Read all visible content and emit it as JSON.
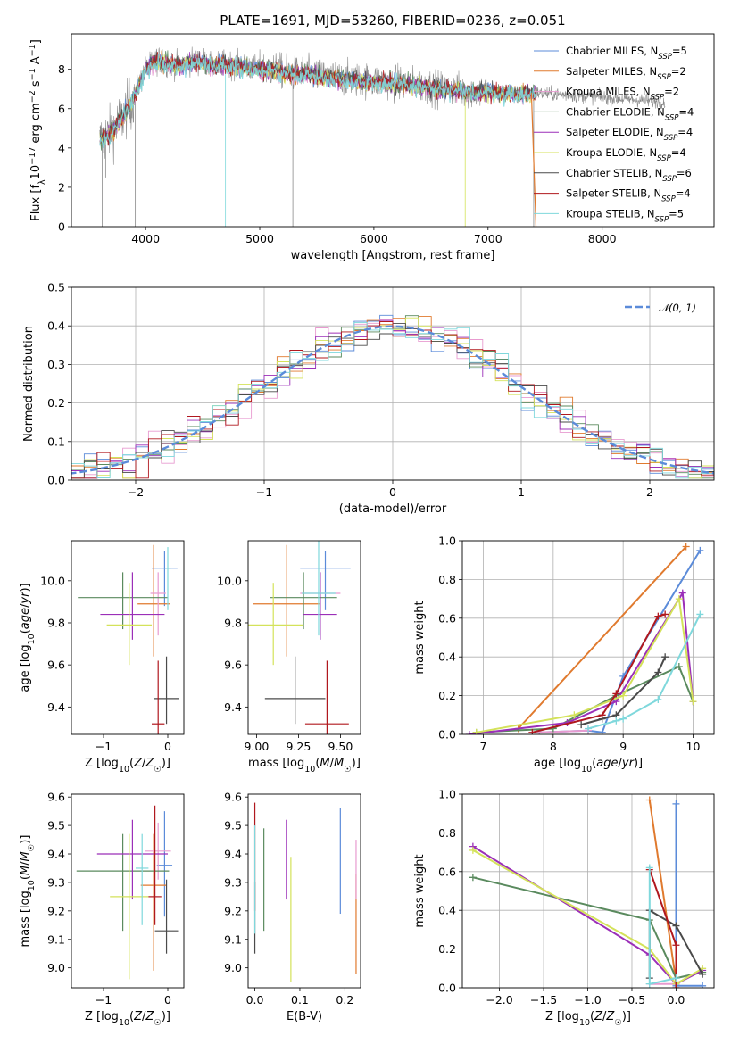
{
  "page": {
    "title": "PLATE=1691, MJD=53260, FIBERID=0236, z=0.051"
  },
  "models": [
    {
      "name": "Chabrier MILES",
      "nssp": "5",
      "color": "#5b8bd9"
    },
    {
      "name": "Salpeter MILES",
      "nssp": "2",
      "color": "#e07a2e"
    },
    {
      "name": "Kroupa MILES",
      "nssp": "2",
      "color": "#e89bd0"
    },
    {
      "name": "Chabrier ELODIE",
      "nssp": "4",
      "color": "#5a8a5e"
    },
    {
      "name": "Salpeter ELODIE",
      "nssp": "4",
      "color": "#9b2fb8"
    },
    {
      "name": "Kroupa ELODIE",
      "nssp": "4",
      "color": "#d4e25a"
    },
    {
      "name": "Chabrier STELIB",
      "nssp": "6",
      "color": "#4a4a4a"
    },
    {
      "name": "Salpeter STELIB",
      "nssp": "4",
      "color": "#b0181e"
    },
    {
      "name": "Kroupa STELIB",
      "nssp": "5",
      "color": "#7fd8dc"
    }
  ],
  "chart_data": [
    {
      "id": "spectrum",
      "type": "line",
      "title": "PLATE=1691, MJD=53260, FIBERID=0236, z=0.051",
      "xlabel": "wavelength [Angstrom, rest frame]",
      "ylabel": "Flux [f_λ 10^-17 erg cm^-2 s^-1 A^-1]",
      "xlim": [
        3350,
        8980
      ],
      "ylim": [
        0,
        9.8
      ],
      "xticks": [
        4000,
        5000,
        6000,
        7000,
        8000
      ],
      "yticks": [
        0,
        2,
        4,
        6,
        8
      ],
      "continuum": [
        [
          3600,
          4.4
        ],
        [
          3700,
          4.8
        ],
        [
          3800,
          5.6
        ],
        [
          3900,
          6.6
        ],
        [
          3950,
          7.3
        ],
        [
          4000,
          8.0
        ],
        [
          4100,
          8.5
        ],
        [
          4200,
          8.3
        ],
        [
          4300,
          8.2
        ],
        [
          4400,
          8.4
        ],
        [
          4500,
          8.4
        ],
        [
          4600,
          8.2
        ],
        [
          4700,
          8.3
        ],
        [
          4800,
          8.2
        ],
        [
          4900,
          8.1
        ],
        [
          5000,
          8.0
        ],
        [
          5100,
          8.0
        ],
        [
          5200,
          7.9
        ],
        [
          5300,
          7.8
        ],
        [
          5400,
          7.8
        ],
        [
          5500,
          7.7
        ],
        [
          5600,
          7.6
        ],
        [
          5800,
          7.5
        ],
        [
          6000,
          7.4
        ],
        [
          6200,
          7.3
        ],
        [
          6400,
          7.2
        ],
        [
          6600,
          7.0
        ],
        [
          6800,
          6.9
        ],
        [
          7000,
          6.9
        ],
        [
          7200,
          6.8
        ],
        [
          7400,
          6.8
        ]
      ],
      "model_end": 7420,
      "data_end": 8550,
      "grid": false,
      "legend": "top-right"
    },
    {
      "id": "residuals",
      "type": "histogram",
      "xlabel": "(data-model)/error",
      "ylabel": "Normed distribution",
      "xlim": [
        -2.5,
        2.5
      ],
      "ylim": [
        0,
        0.5
      ],
      "xticks": [
        -2,
        -1,
        0,
        1,
        2
      ],
      "yticks": [
        0.0,
        0.1,
        0.2,
        0.3,
        0.4,
        0.5
      ],
      "bin_width": 0.1,
      "reference_label": "𝒩(0, 1)",
      "reference_color": "#5b8bd9",
      "grid": true,
      "legend": "top-right"
    },
    {
      "id": "age_vs_Z",
      "type": "errorbar",
      "xlabel": "Z [log10(Z/Z☉)]",
      "ylabel": "age  [log10(age/yr)]",
      "xlim": [
        -1.5,
        0.25
      ],
      "ylim": [
        9.27,
        10.19
      ],
      "xticks": [
        -1,
        0
      ],
      "yticks": [
        9.4,
        9.6,
        9.8,
        10.0
      ],
      "points": [
        {
          "x": -0.05,
          "y": 10.06,
          "xerr": 0.2,
          "yerr": [
            0.18,
            0.08
          ]
        },
        {
          "x": -0.22,
          "y": 9.89,
          "xerr": 0.25,
          "yerr": [
            0.25,
            0.28
          ]
        },
        {
          "x": -0.15,
          "y": 9.94,
          "xerr": 0.12,
          "yerr": [
            0.2,
            0.1
          ]
        },
        {
          "x": -0.7,
          "y": 9.92,
          "xerr": 0.7,
          "yerr": [
            0.15,
            0.12
          ]
        },
        {
          "x": -0.55,
          "y": 9.84,
          "xerr": 0.5,
          "yerr": [
            0.12,
            0.2
          ]
        },
        {
          "x": -0.6,
          "y": 9.79,
          "xerr": 0.35,
          "yerr": [
            0.19,
            0.2
          ]
        },
        {
          "x": -0.02,
          "y": 9.44,
          "xerr": 0.2,
          "yerr": [
            0.12,
            0.2
          ]
        },
        {
          "x": -0.15,
          "y": 9.32,
          "xerr": 0.1,
          "yerr": [
            0.05,
            0.3
          ]
        },
        {
          "x": 0.0,
          "y": 10.06,
          "xerr": 0.05,
          "yerr": [
            0.2,
            0.1
          ]
        }
      ]
    },
    {
      "id": "age_vs_mass",
      "type": "errorbar",
      "xlabel": "mass [log10(M/M☉)]",
      "ylabel": "",
      "xlim": [
        8.95,
        9.62
      ],
      "ylim": [
        9.27,
        10.19
      ],
      "xticks": [
        9.0,
        9.25,
        9.5
      ],
      "yticks": [
        9.4,
        9.6,
        9.8,
        10.0
      ],
      "points": [
        {
          "x": 9.41,
          "y": 10.06,
          "xerr": 0.15,
          "yerr": [
            0.2,
            0.08
          ]
        },
        {
          "x": 9.18,
          "y": 9.89,
          "xerr": 0.2,
          "yerr": [
            0.25,
            0.28
          ]
        },
        {
          "x": 9.38,
          "y": 9.94,
          "xerr": 0.12,
          "yerr": [
            0.2,
            0.1
          ]
        },
        {
          "x": 9.28,
          "y": 9.92,
          "xerr": 0.2,
          "yerr": [
            0.15,
            0.12
          ]
        },
        {
          "x": 9.38,
          "y": 9.84,
          "xerr": 0.1,
          "yerr": [
            0.12,
            0.2
          ]
        },
        {
          "x": 9.1,
          "y": 9.79,
          "xerr": 0.18,
          "yerr": [
            0.19,
            0.2
          ]
        },
        {
          "x": 9.23,
          "y": 9.44,
          "xerr": 0.18,
          "yerr": [
            0.12,
            0.2
          ]
        },
        {
          "x": 9.42,
          "y": 9.32,
          "xerr": 0.13,
          "yerr": [
            0.05,
            0.3
          ]
        },
        {
          "x": 9.37,
          "y": 9.94,
          "xerr": 0.1,
          "yerr": [
            0.2,
            0.25
          ]
        }
      ]
    },
    {
      "id": "weight_vs_age",
      "type": "line",
      "xlabel": "age  [log10(age/yr)]",
      "ylabel": "mass weight",
      "xlim": [
        6.7,
        10.3
      ],
      "ylim": [
        0,
        1
      ],
      "xticks": [
        7,
        8,
        9,
        10
      ],
      "yticks": [
        0.0,
        0.2,
        0.4,
        0.6,
        0.8,
        1.0
      ],
      "grid": true,
      "series": [
        {
          "color_index": 0,
          "x": [
            7.8,
            8.5,
            8.7,
            9.0,
            10.1
          ],
          "y": [
            0.01,
            0.02,
            0.01,
            0.3,
            0.95
          ]
        },
        {
          "color_index": 1,
          "x": [
            7.5,
            9.9
          ],
          "y": [
            0.03,
            0.97
          ]
        },
        {
          "color_index": 2,
          "x": [
            7.8,
            8.5
          ],
          "y": [
            0.01,
            0.02
          ]
        },
        {
          "color_index": 3,
          "x": [
            6.9,
            8.0,
            8.9,
            9.8,
            10.0
          ],
          "y": [
            0.01,
            0.03,
            0.2,
            0.35,
            0.17
          ]
        },
        {
          "color_index": 4,
          "x": [
            6.8,
            8.2,
            8.9,
            9.85,
            10.0
          ],
          "y": [
            0.0,
            0.06,
            0.17,
            0.73,
            0.17
          ]
        },
        {
          "color_index": 5,
          "x": [
            6.9,
            8.3,
            9.0,
            9.8,
            10.0
          ],
          "y": [
            0.01,
            0.1,
            0.2,
            0.7,
            0.17
          ]
        },
        {
          "color_index": 6,
          "x": [
            8.4,
            8.7,
            8.9,
            9.5,
            9.6
          ],
          "y": [
            0.05,
            0.08,
            0.1,
            0.32,
            0.4
          ]
        },
        {
          "color_index": 7,
          "x": [
            7.7,
            8.7,
            8.9,
            9.5,
            9.6
          ],
          "y": [
            0.01,
            0.1,
            0.21,
            0.61,
            0.62
          ]
        },
        {
          "color_index": 8,
          "x": [
            8.5,
            8.9,
            9.0,
            9.5,
            10.1
          ],
          "y": [
            0.03,
            0.07,
            0.08,
            0.18,
            0.62
          ]
        }
      ]
    },
    {
      "id": "mass_vs_Z",
      "type": "errorbar",
      "xlabel": "Z [log10(Z/Z☉)]",
      "ylabel": "mass [log10(M/M☉)]",
      "xlim": [
        -1.5,
        0.25
      ],
      "ylim": [
        8.93,
        9.61
      ],
      "xticks": [
        -1,
        0
      ],
      "yticks": [
        9.0,
        9.1,
        9.2,
        9.3,
        9.4,
        9.5,
        9.6
      ],
      "points": [
        {
          "x": -0.05,
          "y": 9.36,
          "xerr": 0.12,
          "yerr": [
            0.18,
            0.19
          ]
        },
        {
          "x": -0.22,
          "y": 9.29,
          "xerr": 0.2,
          "yerr": [
            0.3,
            0.18
          ]
        },
        {
          "x": -0.15,
          "y": 9.41,
          "xerr": 0.2,
          "yerr": [
            0.1,
            0.1
          ]
        },
        {
          "x": -0.7,
          "y": 9.34,
          "xerr": 0.72,
          "yerr": [
            0.21,
            0.13
          ]
        },
        {
          "x": -0.55,
          "y": 9.4,
          "xerr": 0.55,
          "yerr": [
            0.16,
            0.12
          ]
        },
        {
          "x": -0.6,
          "y": 9.25,
          "xerr": 0.3,
          "yerr": [
            0.29,
            0.22
          ]
        },
        {
          "x": -0.02,
          "y": 9.13,
          "xerr": 0.18,
          "yerr": [
            0.08,
            0.18
          ]
        },
        {
          "x": -0.2,
          "y": 9.25,
          "xerr": 0.1,
          "yerr": [
            0.1,
            0.32
          ]
        },
        {
          "x": -0.4,
          "y": 9.35,
          "xerr": 0.1,
          "yerr": [
            0.2,
            0.12
          ]
        }
      ]
    },
    {
      "id": "mass_vs_ebv",
      "type": "errorbar",
      "xlabel": "E(B-V)",
      "ylabel": "",
      "xlim": [
        -0.015,
        0.235
      ],
      "ylim": [
        8.93,
        9.61
      ],
      "xticks": [
        0.0,
        0.1,
        0.2
      ],
      "yticks": [
        9.0,
        9.1,
        9.2,
        9.3,
        9.4,
        9.5,
        9.6
      ],
      "points": [
        {
          "x": 0.19,
          "y": 9.37,
          "xerr": 0,
          "yerr": [
            0.18,
            0.19
          ]
        },
        {
          "x": 0.225,
          "y": 9.16,
          "xerr": 0,
          "yerr": [
            0.18,
            0.17
          ]
        },
        {
          "x": 0.225,
          "y": 9.27,
          "xerr": 0,
          "yerr": [
            0.03,
            0.18
          ]
        },
        {
          "x": 0.02,
          "y": 9.31,
          "xerr": 0,
          "yerr": [
            0.18,
            0.18
          ]
        },
        {
          "x": 0.07,
          "y": 9.38,
          "xerr": 0,
          "yerr": [
            0.14,
            0.14
          ]
        },
        {
          "x": 0.08,
          "y": 9.17,
          "xerr": 0,
          "yerr": [
            0.22,
            0.22
          ]
        },
        {
          "x": 0.0,
          "y": 9.18,
          "xerr": 0,
          "yerr": [
            0.13,
            0.12
          ]
        },
        {
          "x": 0.0,
          "y": 9.38,
          "xerr": 0,
          "yerr": [
            0.18,
            0.2
          ]
        },
        {
          "x": 0.0,
          "y": 9.3,
          "xerr": 0,
          "yerr": [
            0.18,
            0.2
          ]
        }
      ]
    },
    {
      "id": "weight_vs_Z",
      "type": "line",
      "xlabel": "Z [log10(Z/Z☉)]",
      "ylabel": "mass weight",
      "xlim": [
        -2.42,
        0.43
      ],
      "ylim": [
        0,
        1
      ],
      "xticks": [
        -2.0,
        -1.5,
        -1.0,
        -0.5,
        0.0
      ],
      "yticks": [
        0.0,
        0.2,
        0.4,
        0.6,
        0.8,
        1.0
      ],
      "grid": true,
      "series": [
        {
          "color_index": 0,
          "x": [
            0.0,
            0.0,
            0.3
          ],
          "y": [
            0.95,
            0.01,
            0.01
          ]
        },
        {
          "color_index": 1,
          "x": [
            -0.3,
            0.0
          ],
          "y": [
            0.97,
            0.03
          ]
        },
        {
          "color_index": 2,
          "x": [
            -0.3,
            0.0
          ],
          "y": [
            0.02,
            0.02
          ]
        },
        {
          "color_index": 3,
          "x": [
            -2.3,
            -0.3,
            0.0,
            0.3
          ],
          "y": [
            0.57,
            0.35,
            0.05,
            0.08
          ]
        },
        {
          "color_index": 4,
          "x": [
            -2.3,
            -0.3,
            0.0,
            0.3
          ],
          "y": [
            0.73,
            0.17,
            0.02,
            0.09
          ]
        },
        {
          "color_index": 5,
          "x": [
            -2.3,
            -0.3,
            0.0,
            0.3
          ],
          "y": [
            0.71,
            0.2,
            0.02,
            0.1
          ]
        },
        {
          "color_index": 6,
          "x": [
            -0.3,
            -0.3,
            0.0,
            0.3
          ],
          "y": [
            0.05,
            0.4,
            0.32,
            0.07
          ]
        },
        {
          "color_index": 7,
          "x": [
            -0.3,
            0.0,
            0.0
          ],
          "y": [
            0.61,
            0.22,
            0.0
          ]
        },
        {
          "color_index": 8,
          "x": [
            -0.3,
            -0.3,
            0.0
          ],
          "y": [
            0.62,
            0.02,
            0.05
          ]
        }
      ]
    }
  ]
}
